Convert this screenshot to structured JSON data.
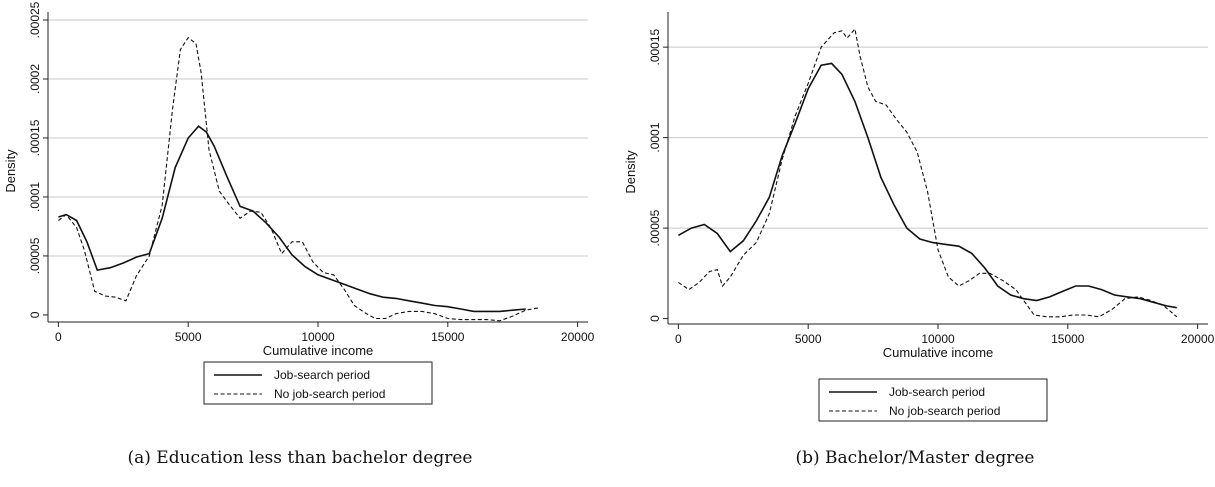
{
  "chart_data": [
    {
      "type": "line",
      "caption": "(a) Education less than bachelor degree",
      "xlabel": "Cumulative income",
      "ylabel": "Density",
      "xlim": [
        -400,
        20400
      ],
      "ylim": [
        -6e-06,
        0.00025
      ],
      "xticks": [
        0,
        5000,
        10000,
        15000,
        20000
      ],
      "xtick_labels": [
        "0",
        "5000",
        "10000",
        "15000",
        "20000"
      ],
      "yticks": [
        0,
        5e-05,
        0.0001,
        0.00015,
        0.0002,
        0.00025
      ],
      "ytick_labels": [
        "0",
        ".00005",
        ".0001",
        ".00015",
        ".0002",
        ".00025"
      ],
      "grid": true,
      "legend_position": "bottom",
      "series": [
        {
          "name": "Job-search period",
          "style": "solid",
          "x": [
            0,
            300,
            700,
            1100,
            1500,
            2000,
            2500,
            3000,
            3500,
            4000,
            4500,
            5000,
            5400,
            5700,
            6000,
            6500,
            7000,
            7500,
            8000,
            8500,
            9000,
            9500,
            10000,
            10500,
            11000,
            11500,
            12000,
            12500,
            13000,
            13500,
            14000,
            14500,
            15000,
            15500,
            16000,
            16500,
            17000,
            17500,
            18000
          ],
          "y": [
            8.3e-05,
            8.5e-05,
            8e-05,
            6.2e-05,
            3.8e-05,
            4e-05,
            4.4e-05,
            4.9e-05,
            5.2e-05,
            8.2e-05,
            0.000125,
            0.00015,
            0.00016,
            0.000155,
            0.000143,
            0.000117,
            9.2e-05,
            8.8e-05,
            7.8e-05,
            6.6e-05,
            5.1e-05,
            4.1e-05,
            3.4e-05,
            3e-05,
            2.6e-05,
            2.2e-05,
            1.8e-05,
            1.5e-05,
            1.4e-05,
            1.2e-05,
            1e-05,
            8e-06,
            7e-06,
            5e-06,
            3e-06,
            3e-06,
            3e-06,
            4e-06,
            5e-06
          ]
        },
        {
          "name": "No job-search period",
          "style": "dashed",
          "x": [
            0,
            300,
            700,
            1000,
            1400,
            1800,
            2200,
            2600,
            3000,
            3500,
            4000,
            4400,
            4700,
            5000,
            5300,
            5500,
            5800,
            6200,
            6600,
            7000,
            7400,
            7800,
            8200,
            8600,
            9000,
            9400,
            9800,
            10200,
            10600,
            11000,
            11400,
            11800,
            12200,
            12600,
            13000,
            13500,
            14000,
            14500,
            15000,
            15500,
            16000,
            16500,
            17000,
            17500,
            18000,
            18500
          ],
          "y": [
            8e-05,
            8.5e-05,
            7.4e-05,
            5.5e-05,
            2e-05,
            1.6e-05,
            1.5e-05,
            1.2e-05,
            3.3e-05,
            5e-05,
            9.3e-05,
            0.000175,
            0.000225,
            0.000235,
            0.00023,
            0.000205,
            0.00014,
            0.000105,
            9.3e-05,
            8.2e-05,
            8.8e-05,
            8.7e-05,
            7.3e-05,
            5.2e-05,
            6.2e-05,
            6.2e-05,
            4.5e-05,
            3.6e-05,
            3.4e-05,
            2.2e-05,
            8e-06,
            2e-06,
            -3e-06,
            -3e-06,
            1e-06,
            3e-06,
            3e-06,
            1e-06,
            -3e-06,
            -4e-06,
            -4e-06,
            -4e-06,
            -5e-06,
            -1e-06,
            4e-06,
            6e-06
          ]
        }
      ]
    },
    {
      "type": "line",
      "caption": "(b) Bachelor/Master degree",
      "xlabel": "Cumulative income",
      "ylabel": "Density",
      "xlim": [
        -400,
        20400
      ],
      "ylim": [
        -3e-06,
        0.000165
      ],
      "xticks": [
        0,
        5000,
        10000,
        15000,
        20000
      ],
      "xtick_labels": [
        "0",
        "5000",
        "10000",
        "15000",
        "20000"
      ],
      "yticks": [
        0,
        5e-05,
        0.0001,
        0.00015
      ],
      "ytick_labels": [
        "0",
        ".00005",
        ".0001",
        ".00015"
      ],
      "grid": true,
      "legend_position": "bottom",
      "series": [
        {
          "name": "Job-search period",
          "style": "solid",
          "x": [
            0,
            500,
            1000,
            1500,
            2000,
            2500,
            3000,
            3500,
            4000,
            4500,
            5000,
            5500,
            5900,
            6300,
            6800,
            7300,
            7800,
            8300,
            8800,
            9300,
            9800,
            10300,
            10800,
            11300,
            11800,
            12300,
            12800,
            13300,
            13800,
            14300,
            14800,
            15300,
            15800,
            16300,
            16800,
            17300,
            17800,
            18300,
            18800,
            19200
          ],
          "y": [
            4.6e-05,
            5e-05,
            5.2e-05,
            4.7e-05,
            3.7e-05,
            4.3e-05,
            5.4e-05,
            6.7e-05,
            9e-05,
            0.000108,
            0.000127,
            0.00014,
            0.000141,
            0.000135,
            0.00012,
            0.0001,
            7.8e-05,
            6.3e-05,
            5e-05,
            4.4e-05,
            4.2e-05,
            4.1e-05,
            4e-05,
            3.6e-05,
            2.8e-05,
            1.8e-05,
            1.3e-05,
            1.1e-05,
            1e-05,
            1.2e-05,
            1.5e-05,
            1.8e-05,
            1.8e-05,
            1.6e-05,
            1.3e-05,
            1.2e-05,
            1.1e-05,
            9e-06,
            7e-06,
            6e-06
          ]
        },
        {
          "name": "No job-search period",
          "style": "dashed",
          "x": [
            0,
            400,
            800,
            1200,
            1500,
            1700,
            2000,
            2500,
            3000,
            3500,
            4000,
            4500,
            5000,
            5500,
            6000,
            6300,
            6500,
            6800,
            7000,
            7300,
            7600,
            8000,
            8400,
            8800,
            9200,
            9600,
            10000,
            10400,
            10800,
            11200,
            11600,
            12000,
            12500,
            13000,
            13300,
            13700,
            14200,
            14700,
            15200,
            15700,
            16200,
            16700,
            17200,
            17700,
            18200,
            18700,
            19200
          ],
          "y": [
            2e-05,
            1.6e-05,
            2e-05,
            2.6e-05,
            2.7e-05,
            1.8e-05,
            2.3e-05,
            3.5e-05,
            4.2e-05,
            5.8e-05,
            8.8e-05,
            0.000112,
            0.00013,
            0.00015,
            0.000158,
            0.000159,
            0.000155,
            0.00016,
            0.000145,
            0.000128,
            0.00012,
            0.000118,
            0.00011,
            0.000103,
            9.2e-05,
            7e-05,
            3.8e-05,
            2.3e-05,
            1.8e-05,
            2.1e-05,
            2.5e-05,
            2.5e-05,
            2.1e-05,
            1.6e-05,
            1e-05,
            2e-06,
            1e-06,
            1e-06,
            2e-06,
            2e-06,
            1e-06,
            5e-06,
            1.1e-05,
            1.2e-05,
            1e-05,
            7e-06,
            1e-06
          ]
        }
      ]
    }
  ]
}
